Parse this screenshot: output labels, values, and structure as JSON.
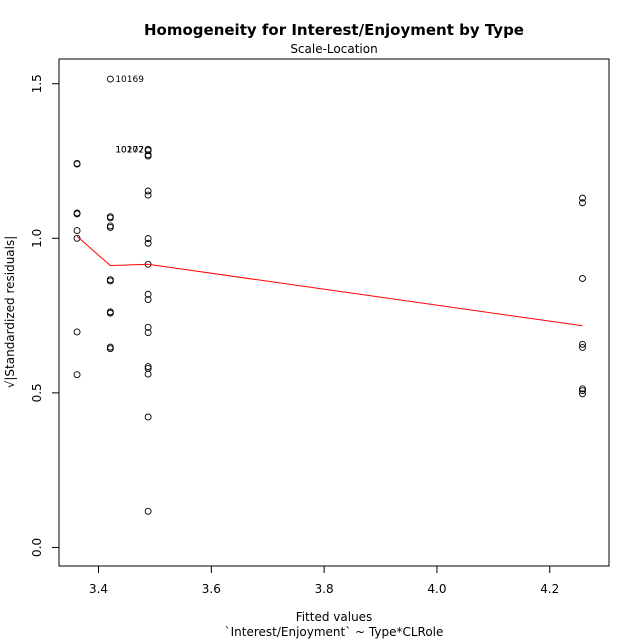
{
  "chart_data": {
    "type": "scatter",
    "title": "Homogeneity for Interest/Enjoyment by Type",
    "subtitle": "Scale-Location",
    "xlabel": "Fitted values",
    "xlabel2": "`Interest/Enjoyment` ~ Type*CLRole",
    "ylabel": "√|Standardized residuals|",
    "xlim": [
      3.33,
      4.305
    ],
    "ylim": [
      -0.06,
      1.58
    ],
    "xticks": [
      3.4,
      3.6,
      3.8,
      4.0,
      4.2
    ],
    "xtick_labels": [
      "3.4",
      "3.6",
      "3.8",
      "4.0",
      "4.2"
    ],
    "yticks": [
      0.0,
      0.5,
      1.0,
      1.5
    ],
    "ytick_labels": [
      "0.0",
      "0.5",
      "1.0",
      "1.5"
    ],
    "colors": {
      "points": "#000000",
      "smooth": "#ff0000",
      "axis": "#000000"
    },
    "points": [
      {
        "x": 3.362,
        "y": 1.242
      },
      {
        "x": 3.362,
        "y": 1.24
      },
      {
        "x": 3.362,
        "y": 1.082
      },
      {
        "x": 3.362,
        "y": 1.079
      },
      {
        "x": 3.362,
        "y": 1.025
      },
      {
        "x": 3.362,
        "y": 1.0
      },
      {
        "x": 3.362,
        "y": 0.697
      },
      {
        "x": 3.362,
        "y": 0.559
      },
      {
        "x": 3.421,
        "y": 1.515
      },
      {
        "x": 3.421,
        "y": 1.07
      },
      {
        "x": 3.421,
        "y": 1.066
      },
      {
        "x": 3.421,
        "y": 1.04
      },
      {
        "x": 3.421,
        "y": 1.035
      },
      {
        "x": 3.421,
        "y": 0.866
      },
      {
        "x": 3.421,
        "y": 0.862
      },
      {
        "x": 3.421,
        "y": 0.762
      },
      {
        "x": 3.421,
        "y": 0.758
      },
      {
        "x": 3.421,
        "y": 0.648
      },
      {
        "x": 3.421,
        "y": 0.643
      },
      {
        "x": 3.488,
        "y": 1.288
      },
      {
        "x": 3.488,
        "y": 1.284
      },
      {
        "x": 3.488,
        "y": 1.27
      },
      {
        "x": 3.488,
        "y": 1.266
      },
      {
        "x": 3.488,
        "y": 1.153
      },
      {
        "x": 3.488,
        "y": 1.14
      },
      {
        "x": 3.488,
        "y": 0.999
      },
      {
        "x": 3.488,
        "y": 0.984
      },
      {
        "x": 3.488,
        "y": 0.916
      },
      {
        "x": 3.488,
        "y": 0.819
      },
      {
        "x": 3.488,
        "y": 0.802
      },
      {
        "x": 3.488,
        "y": 0.712
      },
      {
        "x": 3.488,
        "y": 0.695
      },
      {
        "x": 3.488,
        "y": 0.585
      },
      {
        "x": 3.488,
        "y": 0.579
      },
      {
        "x": 3.488,
        "y": 0.561
      },
      {
        "x": 3.488,
        "y": 0.422
      },
      {
        "x": 3.488,
        "y": 0.117
      },
      {
        "x": 4.258,
        "y": 1.13
      },
      {
        "x": 4.258,
        "y": 1.115
      },
      {
        "x": 4.258,
        "y": 0.87
      },
      {
        "x": 4.258,
        "y": 0.657
      },
      {
        "x": 4.258,
        "y": 0.647
      },
      {
        "x": 4.258,
        "y": 0.513
      },
      {
        "x": 4.258,
        "y": 0.507
      },
      {
        "x": 4.258,
        "y": 0.497
      }
    ],
    "smooth_line": [
      {
        "x": 3.362,
        "y": 1.006
      },
      {
        "x": 3.421,
        "y": 0.912
      },
      {
        "x": 3.488,
        "y": 0.916
      },
      {
        "x": 4.258,
        "y": 0.717
      }
    ],
    "annotations": [
      {
        "text": "10169",
        "x": 3.421,
        "y": 1.515
      },
      {
        "text": "10177",
        "x": 3.421,
        "y": 1.288
      },
      {
        "text": "10202",
        "x": 3.421,
        "y": 1.288
      }
    ]
  }
}
